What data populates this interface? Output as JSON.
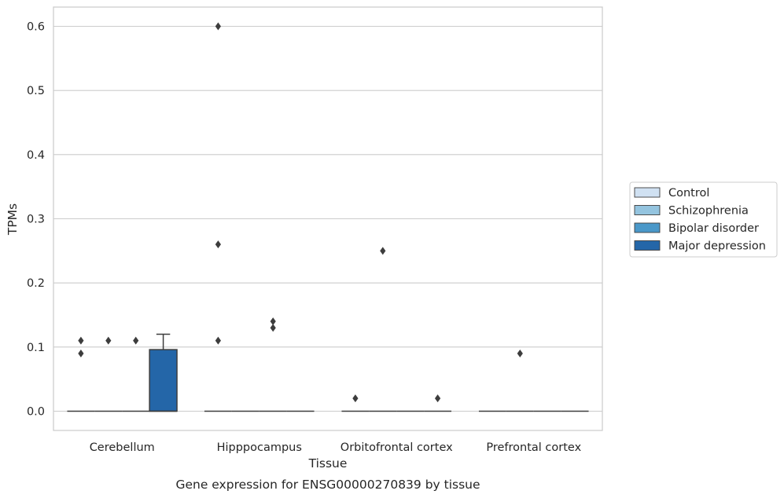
{
  "chart_data": {
    "type": "box",
    "title": "",
    "caption": "Gene expression for ENSG00000270839 by tissue",
    "xlabel": "Tissue",
    "ylabel": "TPMs",
    "ylim": [
      -0.03,
      0.63
    ],
    "yticks": [
      0.0,
      0.1,
      0.2,
      0.3,
      0.4,
      0.5,
      0.6
    ],
    "ytick_labels": [
      "0.0",
      "0.1",
      "0.2",
      "0.3",
      "0.4",
      "0.5",
      "0.6"
    ],
    "grid": "horizontal",
    "legend_placement": "right",
    "categories": [
      "Cerebellum",
      "Hipppocampus",
      "Orbitofrontal cortex",
      "Prefrontal cortex"
    ],
    "series": [
      {
        "name": "Control",
        "color": "#d0e1f2",
        "boxes": [
          {
            "q1": 0,
            "median": 0,
            "q3": 0,
            "whislo": 0,
            "whishi": 0,
            "fliers": [
              0.11,
              0.09
            ]
          },
          {
            "q1": 0,
            "median": 0,
            "q3": 0,
            "whislo": 0,
            "whishi": 0,
            "fliers": [
              0.6,
              0.26,
              0.11
            ]
          },
          {
            "q1": 0,
            "median": 0,
            "q3": 0,
            "whislo": 0,
            "whishi": 0,
            "fliers": [
              0.02
            ]
          },
          {
            "q1": 0,
            "median": 0,
            "q3": 0,
            "whislo": 0,
            "whishi": 0,
            "fliers": []
          }
        ]
      },
      {
        "name": "Schizophrenia",
        "color": "#94c4df",
        "boxes": [
          {
            "q1": 0,
            "median": 0,
            "q3": 0,
            "whislo": 0,
            "whishi": 0,
            "fliers": [
              0.11
            ]
          },
          {
            "q1": 0,
            "median": 0,
            "q3": 0,
            "whislo": 0,
            "whishi": 0,
            "fliers": []
          },
          {
            "q1": 0,
            "median": 0,
            "q3": 0,
            "whislo": 0,
            "whishi": 0,
            "fliers": [
              0.25
            ]
          },
          {
            "q1": 0,
            "median": 0,
            "q3": 0,
            "whislo": 0,
            "whishi": 0,
            "fliers": [
              0.09
            ]
          }
        ]
      },
      {
        "name": "Bipolar disorder",
        "color": "#4a98c9",
        "boxes": [
          {
            "q1": 0,
            "median": 0,
            "q3": 0,
            "whislo": 0,
            "whishi": 0,
            "fliers": [
              0.11
            ]
          },
          {
            "q1": 0,
            "median": 0,
            "q3": 0,
            "whislo": 0,
            "whishi": 0,
            "fliers": [
              0.14,
              0.13
            ]
          },
          {
            "q1": 0,
            "median": 0,
            "q3": 0,
            "whislo": 0,
            "whishi": 0,
            "fliers": []
          },
          {
            "q1": 0,
            "median": 0,
            "q3": 0,
            "whislo": 0,
            "whishi": 0,
            "fliers": []
          }
        ]
      },
      {
        "name": "Major depression",
        "color": "#2466a8",
        "boxes": [
          {
            "q1": 0,
            "median": 0,
            "q3": 0.096,
            "whislo": 0,
            "whishi": 0.12,
            "fliers": []
          },
          {
            "q1": 0,
            "median": 0,
            "q3": 0,
            "whislo": 0,
            "whishi": 0,
            "fliers": []
          },
          {
            "q1": 0,
            "median": 0,
            "q3": 0,
            "whislo": 0,
            "whishi": 0,
            "fliers": [
              0.02
            ]
          },
          {
            "q1": 0,
            "median": 0,
            "q3": 0,
            "whislo": 0,
            "whishi": 0,
            "fliers": []
          }
        ]
      }
    ]
  }
}
